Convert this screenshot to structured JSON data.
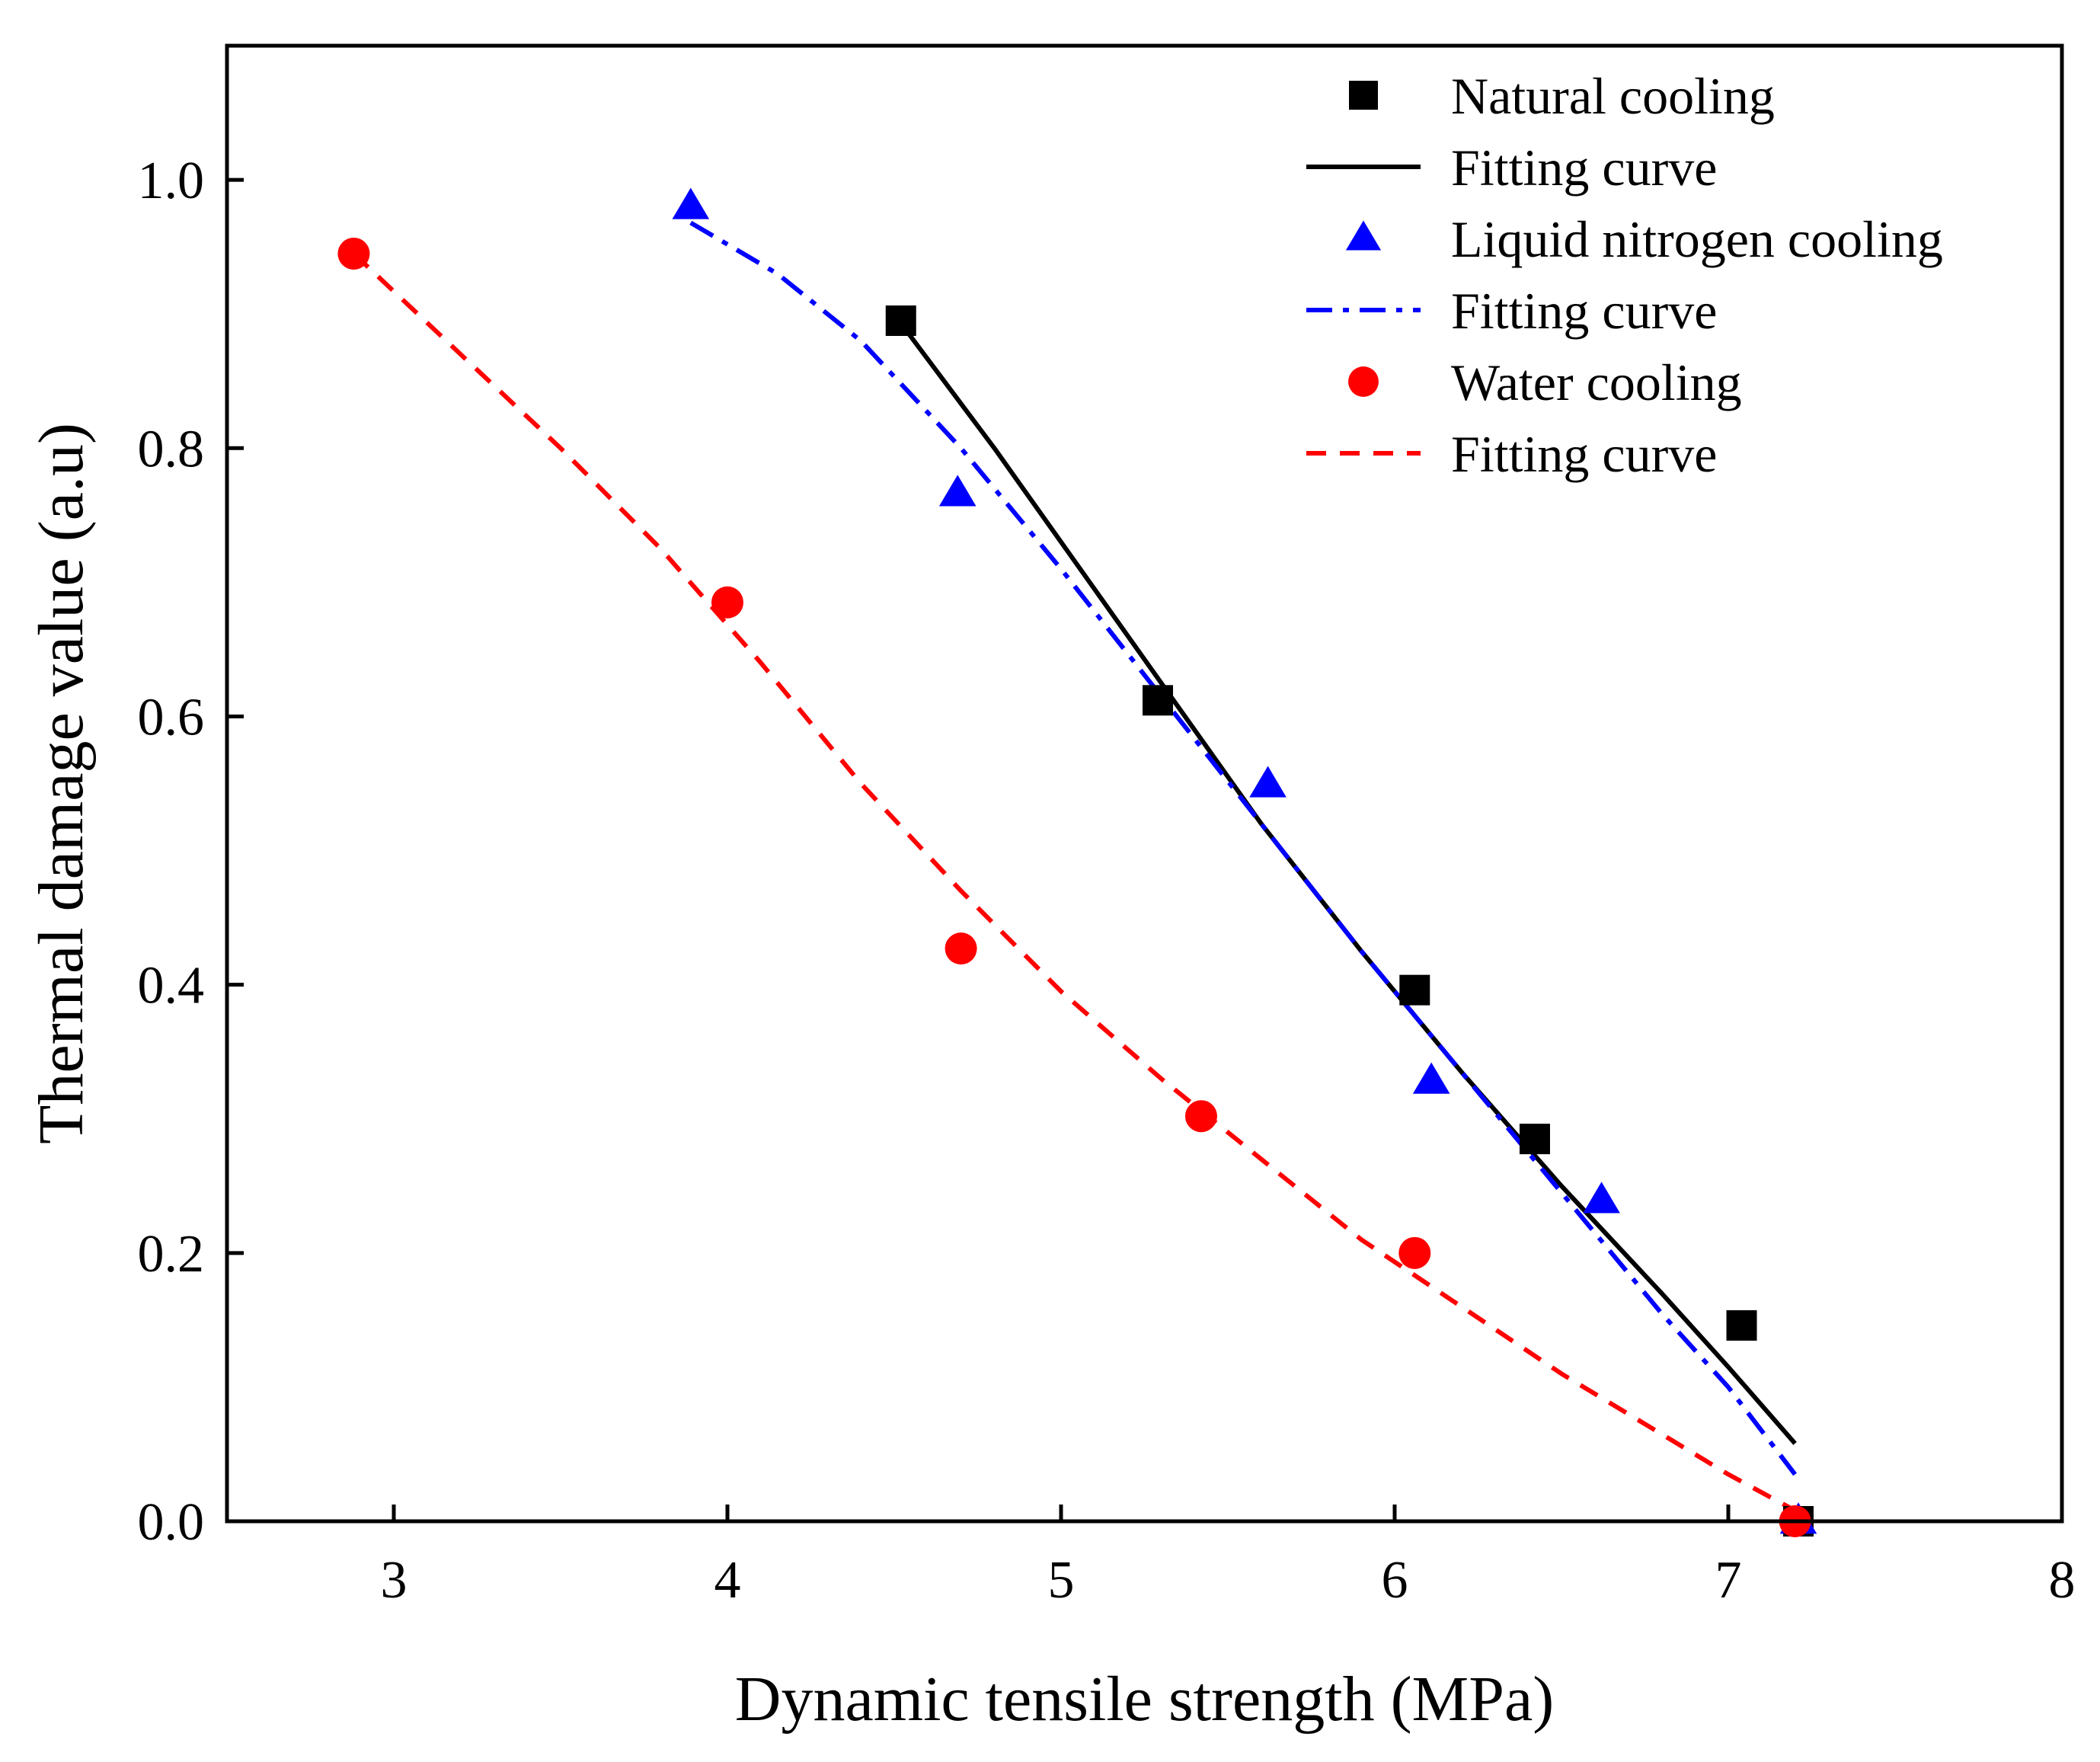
{
  "chart_data": {
    "type": "scatter",
    "title": "",
    "xlabel": "Dynamic tensile strength (MPa)",
    "ylabel": "Thermal damage value (a.u)",
    "xlim": [
      2.5,
      8
    ],
    "ylim": [
      0,
      1.1
    ],
    "xticks": [
      3,
      4,
      5,
      6,
      7,
      8
    ],
    "yticks": [
      0.0,
      0.2,
      0.4,
      0.6,
      0.8,
      1.0
    ],
    "xtick_labels": [
      "3",
      "4",
      "5",
      "6",
      "7",
      "8"
    ],
    "ytick_labels": [
      "0.0",
      "0.2",
      "0.4",
      "0.6",
      "0.8",
      "1.0"
    ],
    "grid": false,
    "legend_position": "top-right",
    "series": [
      {
        "name": "Natural cooling",
        "kind": "points",
        "marker": "square",
        "color": "#000000",
        "x": [
          4.52,
          5.29,
          6.06,
          6.42,
          7.04,
          7.21
        ],
        "y": [
          0.895,
          0.612,
          0.396,
          0.285,
          0.146,
          0.0
        ]
      },
      {
        "name": "Fitting curve",
        "kind": "line",
        "dash": "solid",
        "color": "#000000",
        "x": [
          4.52,
          4.8,
          5.0,
          5.3,
          5.6,
          5.9,
          6.2,
          6.5,
          6.8,
          7.0,
          7.2
        ],
        "y": [
          0.893,
          0.8,
          0.73,
          0.625,
          0.52,
          0.425,
          0.335,
          0.25,
          0.17,
          0.115,
          0.058
        ]
      },
      {
        "name": "Liquid nitrogen cooling",
        "kind": "points",
        "marker": "triangle",
        "color": "#0000FF",
        "x": [
          3.89,
          4.69,
          5.62,
          6.11,
          6.62,
          7.21
        ],
        "y": [
          0.98,
          0.766,
          0.549,
          0.328,
          0.239,
          0.0
        ]
      },
      {
        "name": "Fitting curve",
        "kind": "line",
        "dash": "dashdot",
        "color": "#0000FF",
        "x": [
          3.89,
          4.15,
          4.4,
          4.7,
          5.0,
          5.3,
          5.6,
          5.9,
          6.2,
          6.5,
          6.8,
          7.0,
          7.2
        ],
        "y": [
          0.968,
          0.93,
          0.88,
          0.8,
          0.71,
          0.615,
          0.52,
          0.425,
          0.335,
          0.245,
          0.155,
          0.1,
          0.035
        ]
      },
      {
        "name": "Water cooling",
        "kind": "points",
        "marker": "circle",
        "color": "#FF0000",
        "x": [
          2.88,
          4.0,
          4.7,
          5.42,
          6.06,
          7.2
        ],
        "y": [
          0.945,
          0.685,
          0.427,
          0.302,
          0.2,
          0.0
        ]
      },
      {
        "name": "Fitting curve",
        "kind": "line",
        "dash": "dashed",
        "color": "#FF0000",
        "x": [
          2.88,
          3.2,
          3.5,
          3.8,
          4.1,
          4.4,
          4.7,
          5.0,
          5.3,
          5.6,
          5.9,
          6.2,
          6.5,
          6.8,
          7.0,
          7.2
        ],
        "y": [
          0.945,
          0.87,
          0.8,
          0.725,
          0.64,
          0.55,
          0.47,
          0.395,
          0.33,
          0.27,
          0.21,
          0.16,
          0.11,
          0.065,
          0.035,
          0.008
        ]
      }
    ]
  }
}
